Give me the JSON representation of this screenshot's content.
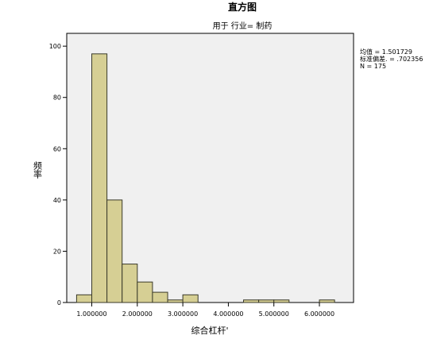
{
  "chart_data": {
    "type": "bar",
    "title": "直方图",
    "subtitle": "用于 行业= 制药",
    "xlabel": "综合杠杆'",
    "ylabel": "频率",
    "xlim": [
      0.45,
      6.75
    ],
    "ylim": [
      0,
      105
    ],
    "x_ticks": [
      1,
      2,
      3,
      4,
      5,
      6
    ],
    "x_tick_labels": [
      "1.000000",
      "2.000000",
      "3.000000",
      "4.000000",
      "5.000000",
      "6.000000"
    ],
    "y_ticks": [
      0,
      20,
      40,
      60,
      80,
      100
    ],
    "y_tick_labels": [
      "0",
      "20",
      "40",
      "60",
      "80",
      "100"
    ],
    "bin_width": 0.3333,
    "bins": [
      {
        "start": 0.6667,
        "count": 3
      },
      {
        "start": 1.0,
        "count": 97
      },
      {
        "start": 1.3333,
        "count": 40
      },
      {
        "start": 1.6667,
        "count": 15
      },
      {
        "start": 2.0,
        "count": 8
      },
      {
        "start": 2.3333,
        "count": 4
      },
      {
        "start": 2.6667,
        "count": 1
      },
      {
        "start": 3.0,
        "count": 3
      },
      {
        "start": 4.3333,
        "count": 1
      },
      {
        "start": 4.6667,
        "count": 1
      },
      {
        "start": 5.0,
        "count": 1
      },
      {
        "start": 6.0,
        "count": 1
      }
    ],
    "stats": {
      "mean": "均值 = 1.501729",
      "std": "标准偏差. = .702356",
      "n": "N = 175"
    },
    "colors": {
      "bar_fill": "#d6cf94",
      "bar_stroke": "#3a3a2a",
      "plot_bg": "#f0f0f0"
    },
    "grid": false
  }
}
